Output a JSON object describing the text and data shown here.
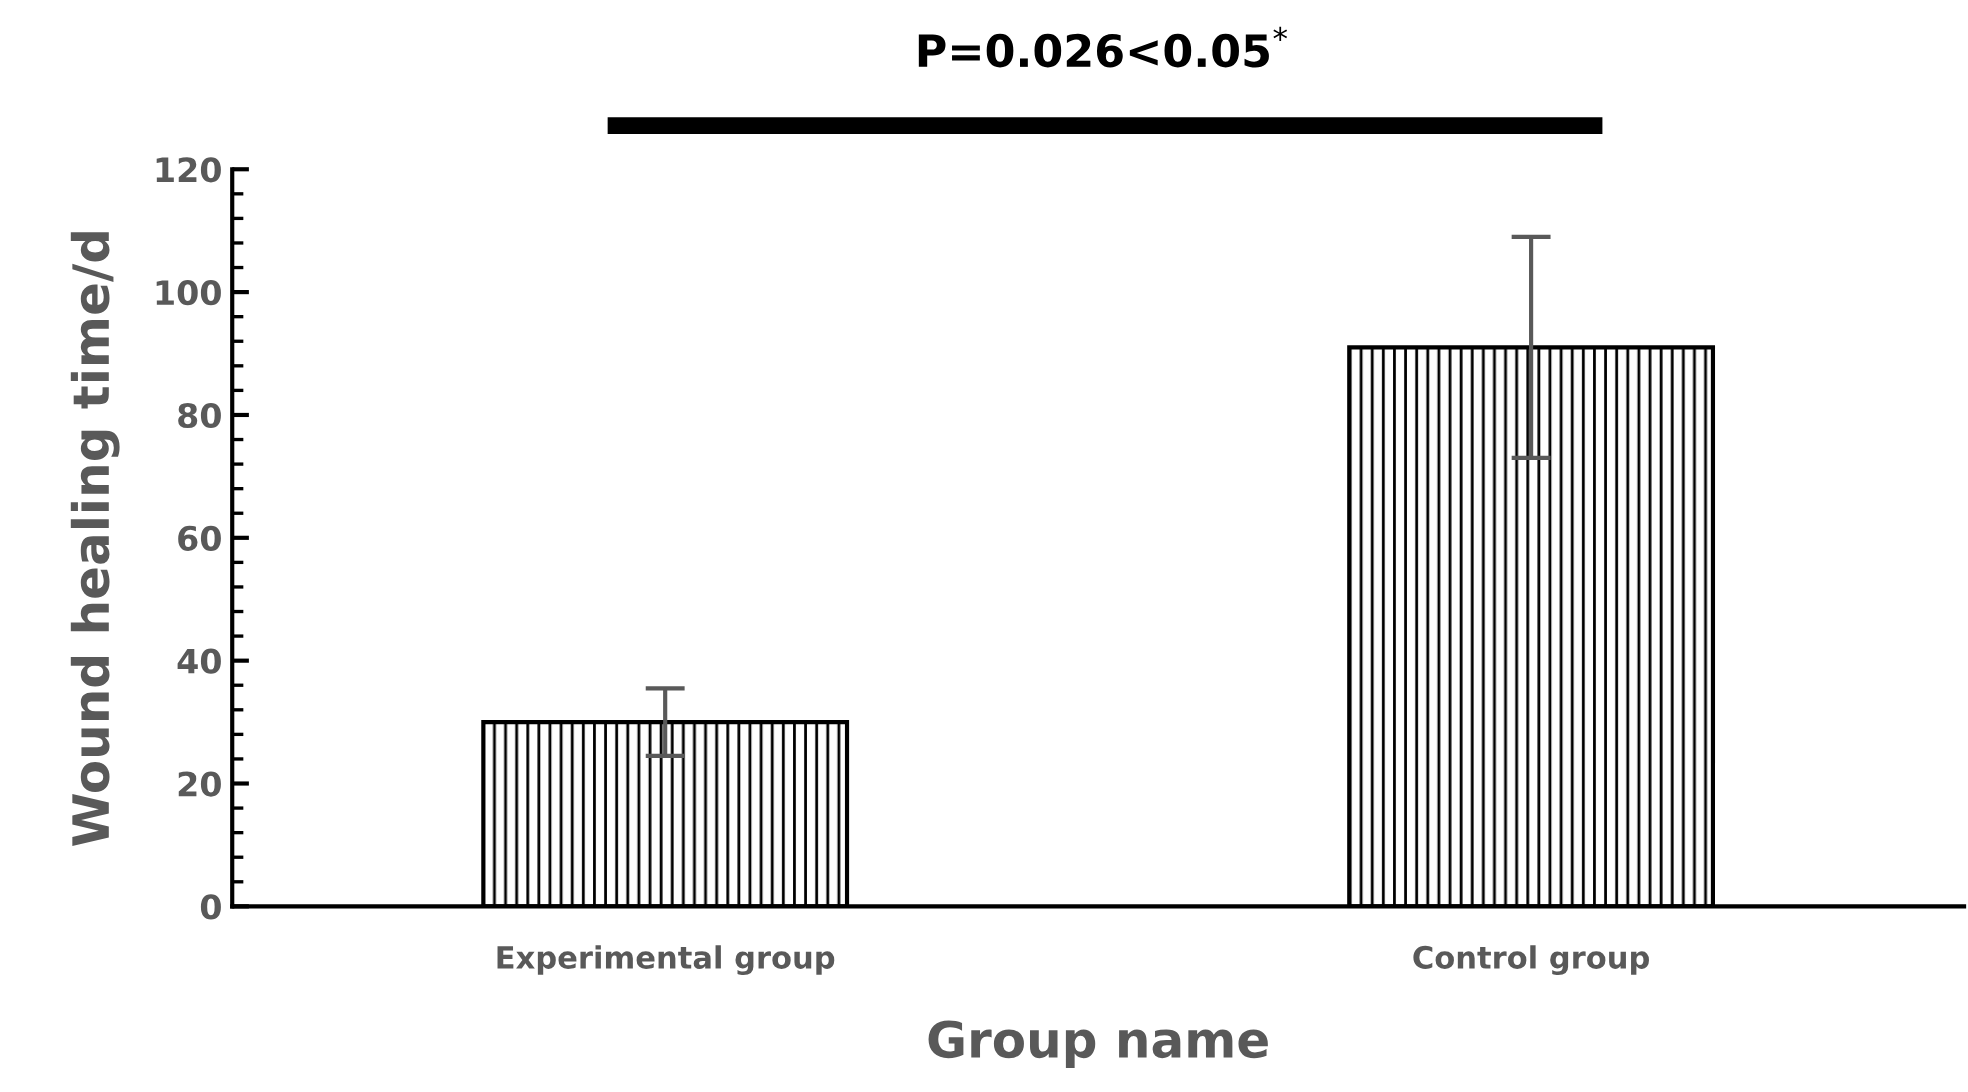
{
  "chart_data": {
    "type": "bar",
    "categories": [
      "Experimental group",
      "Control group"
    ],
    "values": [
      30,
      91
    ],
    "errors": [
      5.5,
      18
    ],
    "color": "#000000",
    "xlabel": "Group name",
    "ylabel": "Wound healing time/d",
    "annotations": [
      "P=0.026<0.05$^{*}$"
    ],
    "ylim": [
      0,
      120
    ],
    "yticks": [
      0,
      20,
      40,
      60,
      80,
      100,
      120
    ],
    "grid": false,
    "legend": false
  }
}
